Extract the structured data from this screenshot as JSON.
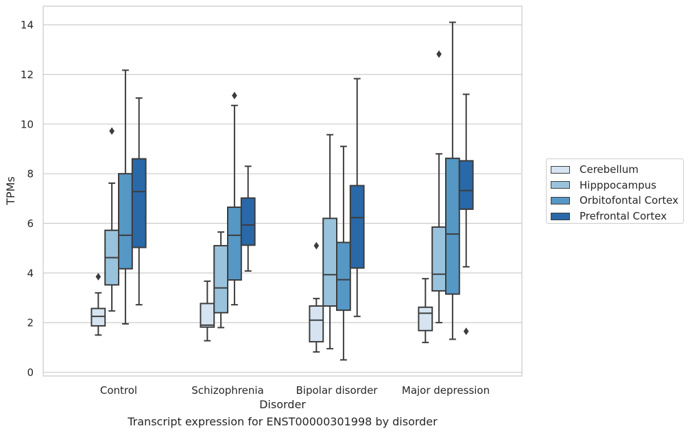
{
  "chart_data": {
    "type": "box",
    "title": "",
    "caption": "Transcript expression for ENST00000301998 by disorder",
    "xlabel": "Disorder",
    "ylabel": "TPMs",
    "ylim": [
      -0.15,
      14.75
    ],
    "yticks": [
      0,
      2,
      4,
      6,
      8,
      10,
      12,
      14
    ],
    "grid": "horizontal",
    "legend_position": "right",
    "categories": [
      "Control",
      "Schizophrenia",
      "Bipolar disorder",
      "Major depression"
    ],
    "series": [
      {
        "name": "Cerebellum",
        "color": "#d6e4f1",
        "boxes": [
          {
            "whisker_low": 1.5,
            "q1": 1.87,
            "median": 2.25,
            "q3": 2.57,
            "whisker_high": 3.2,
            "outliers": [
              3.85
            ]
          },
          {
            "whisker_low": 1.27,
            "q1": 1.82,
            "median": 1.9,
            "q3": 2.77,
            "whisker_high": 3.67,
            "outliers": []
          },
          {
            "whisker_low": 0.82,
            "q1": 1.23,
            "median": 2.1,
            "q3": 2.67,
            "whisker_high": 2.97,
            "outliers": [
              5.1
            ]
          },
          {
            "whisker_low": 1.2,
            "q1": 1.68,
            "median": 2.38,
            "q3": 2.62,
            "whisker_high": 3.77,
            "outliers": []
          }
        ]
      },
      {
        "name": "Hipppocampus",
        "color": "#99c3dc",
        "boxes": [
          {
            "whisker_low": 2.47,
            "q1": 3.52,
            "median": 4.62,
            "q3": 5.72,
            "whisker_high": 7.62,
            "outliers": [
              9.72
            ]
          },
          {
            "whisker_low": 1.8,
            "q1": 2.4,
            "median": 3.4,
            "q3": 5.1,
            "whisker_high": 5.65,
            "outliers": []
          },
          {
            "whisker_low": 0.95,
            "q1": 2.67,
            "median": 3.93,
            "q3": 6.2,
            "whisker_high": 9.57,
            "outliers": []
          },
          {
            "whisker_low": 2.0,
            "q1": 3.28,
            "median": 3.95,
            "q3": 5.85,
            "whisker_high": 8.8,
            "outliers": [
              12.82
            ]
          }
        ]
      },
      {
        "name": "Orbitofontal Cortex",
        "color": "#5597c5",
        "boxes": [
          {
            "whisker_low": 1.95,
            "q1": 4.17,
            "median": 5.52,
            "q3": 8.0,
            "whisker_high": 12.17,
            "outliers": []
          },
          {
            "whisker_low": 2.72,
            "q1": 3.72,
            "median": 5.52,
            "q3": 6.65,
            "whisker_high": 10.75,
            "outliers": [
              11.15
            ]
          },
          {
            "whisker_low": 0.5,
            "q1": 2.5,
            "median": 3.73,
            "q3": 5.23,
            "whisker_high": 9.1,
            "outliers": []
          },
          {
            "whisker_low": 1.33,
            "q1": 3.15,
            "median": 5.57,
            "q3": 8.62,
            "whisker_high": 14.1,
            "outliers": []
          }
        ]
      },
      {
        "name": "Prefrontal Cortex",
        "color": "#2a69a9",
        "boxes": [
          {
            "whisker_low": 2.72,
            "q1": 5.03,
            "median": 7.28,
            "q3": 8.6,
            "whisker_high": 11.05,
            "outliers": []
          },
          {
            "whisker_low": 4.08,
            "q1": 5.12,
            "median": 5.93,
            "q3": 7.02,
            "whisker_high": 8.3,
            "outliers": []
          },
          {
            "whisker_low": 2.25,
            "q1": 4.2,
            "median": 6.23,
            "q3": 7.52,
            "whisker_high": 11.83,
            "outliers": []
          },
          {
            "whisker_low": 4.25,
            "q1": 6.57,
            "median": 7.32,
            "q3": 8.52,
            "whisker_high": 11.2,
            "outliers": [
              1.65
            ]
          }
        ]
      }
    ]
  }
}
